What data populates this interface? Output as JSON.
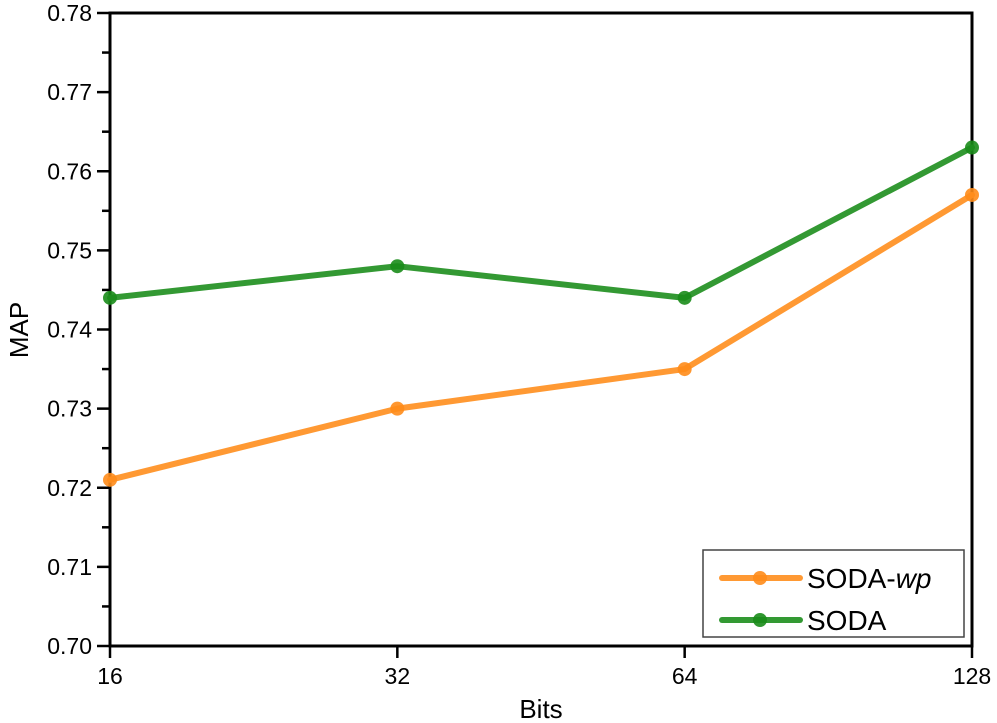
{
  "chart_data": {
    "type": "line",
    "title": "",
    "xlabel": "Bits",
    "ylabel": "MAP",
    "categories": [
      "16",
      "32",
      "64",
      "128"
    ],
    "ylim": [
      0.7,
      0.78
    ],
    "yticks": [
      "0.70",
      "0.71",
      "0.72",
      "0.73",
      "0.74",
      "0.75",
      "0.76",
      "0.77",
      "0.78"
    ],
    "grid": false,
    "legend_position": "bottom-right",
    "series": [
      {
        "name": "SODA-",
        "name_italic": "wp",
        "color": "#ff9933",
        "marker_color": "#ff8c1a",
        "values": [
          0.721,
          0.73,
          0.735,
          0.757
        ]
      },
      {
        "name": "SODA",
        "name_italic": "",
        "color": "#339933",
        "marker_color": "#1a8c1a",
        "values": [
          0.744,
          0.748,
          0.744,
          0.763
        ]
      }
    ]
  }
}
